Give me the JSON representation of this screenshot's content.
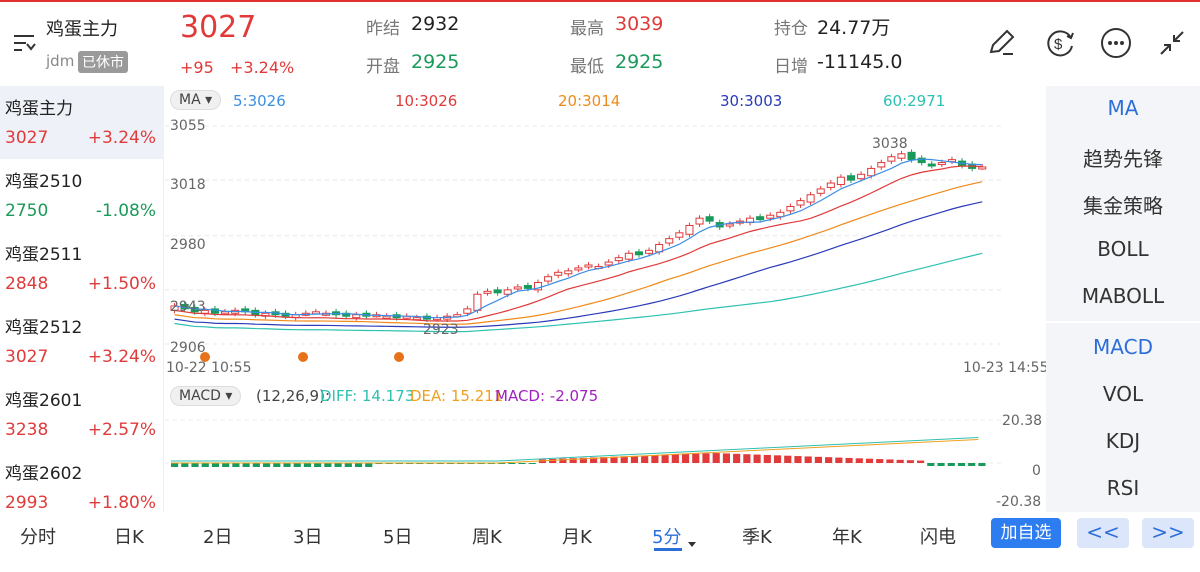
{
  "header": {
    "menu_icon": "filter-lines-icon",
    "title": "鸡蛋主力",
    "exchange": "jdm",
    "status_badge": "已休市",
    "price": "3027",
    "change": "+95",
    "change_pct": "+3.24%",
    "stats": [
      {
        "label": "昨结",
        "value": "2932",
        "color": "neutral"
      },
      {
        "label": "最高",
        "value": "3039",
        "color": "red"
      },
      {
        "label": "持仓",
        "value": "24.77万",
        "color": "neutral"
      },
      {
        "label": "开盘",
        "value": "2925",
        "color": "green"
      },
      {
        "label": "最低",
        "value": "2925",
        "color": "green"
      },
      {
        "label": "日增",
        "value": "-11145.0",
        "color": "neutral"
      }
    ],
    "icons": [
      "pencil-icon",
      "dollar-cycle-icon",
      "more-dots-icon",
      "collapse-arrows-icon"
    ]
  },
  "contracts": [
    {
      "name": "鸡蛋主力",
      "price": "3027",
      "pct": "+3.24%",
      "dir": "up"
    },
    {
      "name": "鸡蛋2510",
      "price": "2750",
      "pct": "-1.08%",
      "dir": "down"
    },
    {
      "name": "鸡蛋2511",
      "price": "2848",
      "pct": "+1.50%",
      "dir": "up"
    },
    {
      "name": "鸡蛋2512",
      "price": "3027",
      "pct": "+3.24%",
      "dir": "up"
    },
    {
      "name": "鸡蛋2601",
      "price": "3238",
      "pct": "+2.57%",
      "dir": "up"
    },
    {
      "name": "鸡蛋2602",
      "price": "2993",
      "pct": "+1.80%",
      "dir": "up"
    }
  ],
  "main_chart": {
    "indicator_button": "MA",
    "ma_legend": [
      {
        "label": "5:3026",
        "color": "#3a8ee6"
      },
      {
        "label": "10:3026",
        "color": "#e03a3a"
      },
      {
        "label": "20:3014",
        "color": "#f08a1a"
      },
      {
        "label": "30:3003",
        "color": "#2a3ab8"
      },
      {
        "label": "60:2971",
        "color": "#2ec0b0"
      }
    ],
    "y_ticks": [
      "3055",
      "3018",
      "2980",
      "2943",
      "2906"
    ],
    "start_time": "10-22 10:55",
    "end_time": "10-23 14:55",
    "max_label": "3038",
    "min_label": "2923"
  },
  "macd_chart": {
    "indicator_button": "MACD",
    "params": "(12,26,9):",
    "diff": "DIFF: 14.173",
    "dea": "DEA: 15.211",
    "macd": "MACD: -2.075",
    "y_top": "20.38",
    "y_zero": "0",
    "y_bottom": "-20.38"
  },
  "right_panel": {
    "main_indicators": [
      "MA",
      "趋势先锋",
      "集金策略",
      "BOLL",
      "MABOLL"
    ],
    "sub_indicators": [
      "MACD",
      "VOL",
      "KDJ",
      "RSI"
    ]
  },
  "tabs": [
    "分时",
    "日K",
    "2日",
    "3日",
    "5日",
    "周K",
    "月K",
    "5分",
    "季K",
    "年K",
    "闪电"
  ],
  "active_tab": "5分",
  "add_button": "加自选",
  "prev_button": "<<",
  "next_button": ">>",
  "chart_data": {
    "type": "candlestick",
    "y_range": [
      2906,
      3055
    ],
    "closes": [
      2932,
      2930,
      2928,
      2929,
      2927,
      2928,
      2929,
      2928,
      2926,
      2927,
      2926,
      2925,
      2926,
      2927,
      2928,
      2927,
      2926,
      2925,
      2926,
      2925,
      2926,
      2925,
      2924,
      2925,
      2924,
      2923,
      2924,
      2925,
      2926,
      2930,
      2940,
      2942,
      2941,
      2943,
      2945,
      2944,
      2948,
      2952,
      2955,
      2956,
      2958,
      2960,
      2959,
      2962,
      2965,
      2968,
      2967,
      2970,
      2974,
      2978,
      2982,
      2987,
      2992,
      2990,
      2986,
      2988,
      2990,
      2992,
      2991,
      2994,
      2996,
      3000,
      3004,
      3008,
      3012,
      3016,
      3020,
      3018,
      3022,
      3026,
      3030,
      3034,
      3036,
      3032,
      3030,
      3028,
      3030,
      3032,
      3028,
      3026,
      3027
    ],
    "ma60": [
      2938,
      2950,
      2960,
      2968,
      2971
    ],
    "macd_hist_range": [
      -20.38,
      20.38
    ]
  }
}
